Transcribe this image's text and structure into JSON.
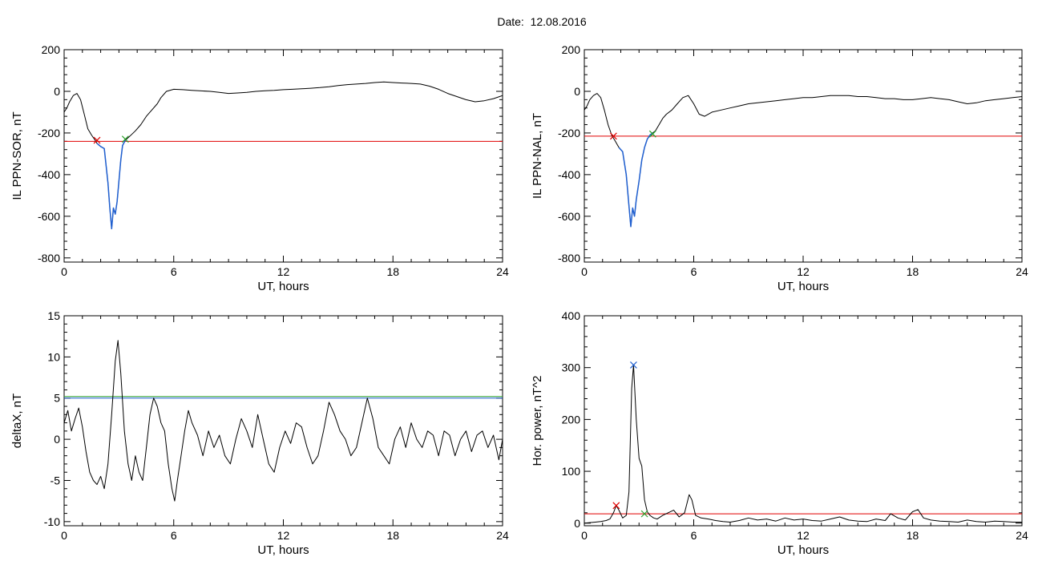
{
  "header": {
    "date_label": "Date:",
    "date_value": "12.08.2016"
  },
  "chart_data": [
    {
      "id": "sor",
      "type": "line",
      "xlabel": "UT, hours",
      "ylabel": "IL PPN-SOR, nT",
      "xlim": [
        0,
        24
      ],
      "ylim": [
        -820,
        200
      ],
      "xticks": [
        0,
        6,
        12,
        18,
        24
      ],
      "yticks": [
        -800,
        -600,
        -400,
        -200,
        0,
        200
      ],
      "xminor": 2,
      "yminor": 5,
      "series": [
        {
          "color": "#000000",
          "x": [
            0,
            0.15,
            0.3,
            0.5,
            0.7,
            0.9,
            1.1,
            1.3,
            1.5,
            1.7,
            1.8,
            2.0,
            2.2,
            2.4,
            2.5,
            2.6,
            2.7,
            2.8,
            2.9,
            3.0,
            3.1,
            3.2,
            3.35,
            3.6,
            3.9,
            4.2,
            4.5,
            4.8,
            5.1,
            5.3,
            5.6,
            6.0,
            6.5,
            7.0,
            7.5,
            8.0,
            8.5,
            9.0,
            9.5,
            10.0,
            10.5,
            11.0,
            11.5,
            12.0,
            12.5,
            13.0,
            13.5,
            14.0,
            14.5,
            15.0,
            15.5,
            16.0,
            16.5,
            17.0,
            17.5,
            18.0,
            18.5,
            19.0,
            19.5,
            20.0,
            20.5,
            21.0,
            21.5,
            22.0,
            22.5,
            23.0,
            23.5,
            24.0
          ],
          "y": [
            -100,
            -80,
            -50,
            -20,
            -10,
            -40,
            -110,
            -180,
            -210,
            -235,
            -250,
            -265,
            -275,
            -440,
            -560,
            -660,
            -560,
            -590,
            -530,
            -430,
            -330,
            -260,
            -235,
            -215,
            -190,
            -160,
            -120,
            -90,
            -60,
            -30,
            0,
            10,
            8,
            5,
            2,
            0,
            -5,
            -10,
            -8,
            -5,
            0,
            3,
            5,
            8,
            10,
            12,
            15,
            18,
            22,
            28,
            32,
            35,
            38,
            42,
            45,
            42,
            40,
            38,
            35,
            25,
            10,
            -10,
            -25,
            -40,
            -50,
            -45,
            -35,
            -20
          ]
        },
        {
          "color": "#1f5fd0",
          "x": [
            1.8,
            2.0,
            2.2,
            2.4,
            2.5,
            2.6,
            2.7,
            2.8,
            2.9,
            3.0,
            3.1,
            3.2,
            3.35
          ],
          "y": [
            -250,
            -265,
            -275,
            -440,
            -560,
            -660,
            -560,
            -590,
            -530,
            -430,
            -330,
            -260,
            -235
          ]
        }
      ],
      "hlines": [
        {
          "y": -240,
          "color": "#e00000"
        }
      ],
      "markers": [
        {
          "x": 1.8,
          "y": -235,
          "color": "#e00000"
        },
        {
          "x": 3.35,
          "y": -230,
          "color": "#2aa02a"
        }
      ]
    },
    {
      "id": "nal",
      "type": "line",
      "xlabel": "UT, hours",
      "ylabel": "IL PPN-NAL, nT",
      "xlim": [
        0,
        24
      ],
      "ylim": [
        -820,
        200
      ],
      "xticks": [
        0,
        6,
        12,
        18,
        24
      ],
      "yticks": [
        -800,
        -600,
        -400,
        -200,
        0,
        200
      ],
      "xminor": 2,
      "yminor": 5,
      "series": [
        {
          "color": "#000000",
          "x": [
            0,
            0.15,
            0.3,
            0.5,
            0.7,
            0.9,
            1.1,
            1.3,
            1.5,
            1.7,
            1.9,
            2.1,
            2.3,
            2.45,
            2.55,
            2.65,
            2.75,
            2.85,
            3.0,
            3.15,
            3.3,
            3.45,
            3.6,
            3.75,
            3.9,
            4.1,
            4.3,
            4.5,
            4.8,
            5.1,
            5.4,
            5.7,
            6.0,
            6.3,
            6.6,
            7.0,
            7.5,
            8.0,
            8.5,
            9.0,
            9.5,
            10.0,
            10.5,
            11.0,
            11.5,
            12.0,
            12.5,
            13.0,
            13.5,
            14.0,
            14.5,
            15.0,
            15.5,
            16.0,
            16.5,
            17.0,
            17.5,
            18.0,
            18.5,
            19.0,
            19.5,
            20.0,
            20.5,
            21.0,
            21.5,
            22.0,
            22.5,
            23.0,
            23.5,
            24.0
          ],
          "y": [
            -90,
            -70,
            -40,
            -20,
            -10,
            -30,
            -90,
            -160,
            -210,
            -240,
            -270,
            -290,
            -400,
            -550,
            -650,
            -560,
            -600,
            -520,
            -430,
            -330,
            -270,
            -230,
            -210,
            -200,
            -190,
            -160,
            -130,
            -110,
            -90,
            -60,
            -30,
            -20,
            -60,
            -110,
            -120,
            -100,
            -90,
            -80,
            -70,
            -60,
            -55,
            -50,
            -45,
            -40,
            -35,
            -30,
            -30,
            -25,
            -20,
            -20,
            -20,
            -25,
            -25,
            -30,
            -35,
            -35,
            -40,
            -40,
            -35,
            -30,
            -35,
            -40,
            -50,
            -60,
            -55,
            -45,
            -40,
            -35,
            -30,
            -25
          ]
        },
        {
          "color": "#1f5fd0",
          "x": [
            1.9,
            2.1,
            2.3,
            2.45,
            2.55,
            2.65,
            2.75,
            2.85,
            3.0,
            3.15,
            3.3,
            3.45,
            3.6,
            3.75
          ],
          "y": [
            -270,
            -290,
            -400,
            -550,
            -650,
            -560,
            -600,
            -520,
            -430,
            -330,
            -270,
            -230,
            -210,
            -200
          ]
        }
      ],
      "hlines": [
        {
          "y": -215,
          "color": "#e00000"
        }
      ],
      "markers": [
        {
          "x": 1.6,
          "y": -215,
          "color": "#e00000"
        },
        {
          "x": 3.75,
          "y": -205,
          "color": "#2aa02a"
        }
      ]
    },
    {
      "id": "deltax",
      "type": "line",
      "xlabel": "UT, hours",
      "ylabel": "deltaX, nT",
      "xlim": [
        0,
        24
      ],
      "ylim": [
        -10.5,
        15
      ],
      "xticks": [
        0,
        6,
        12,
        18,
        24
      ],
      "yticks": [
        -10,
        -5,
        0,
        5,
        10,
        15
      ],
      "xminor": 2,
      "yminor": 5,
      "series": [
        {
          "color": "#000000",
          "x": [
            0,
            0.2,
            0.4,
            0.6,
            0.8,
            1.0,
            1.2,
            1.4,
            1.6,
            1.8,
            2.0,
            2.2,
            2.4,
            2.6,
            2.8,
            2.95,
            3.1,
            3.3,
            3.5,
            3.7,
            3.9,
            4.1,
            4.3,
            4.5,
            4.7,
            4.9,
            5.1,
            5.3,
            5.5,
            5.7,
            5.9,
            6.05,
            6.2,
            6.4,
            6.6,
            6.8,
            7.0,
            7.3,
            7.6,
            7.9,
            8.2,
            8.5,
            8.8,
            9.1,
            9.4,
            9.7,
            10.0,
            10.3,
            10.6,
            10.9,
            11.2,
            11.5,
            11.8,
            12.1,
            12.4,
            12.7,
            13.0,
            13.3,
            13.6,
            13.9,
            14.2,
            14.5,
            14.8,
            15.1,
            15.4,
            15.7,
            16.0,
            16.3,
            16.6,
            16.9,
            17.2,
            17.5,
            17.8,
            18.1,
            18.4,
            18.7,
            19.0,
            19.3,
            19.6,
            19.9,
            20.2,
            20.5,
            20.8,
            21.1,
            21.4,
            21.7,
            22.0,
            22.3,
            22.6,
            22.9,
            23.2,
            23.5,
            23.8,
            24.0
          ],
          "y": [
            2,
            3.5,
            1,
            2.5,
            3.8,
            1.5,
            -1.5,
            -4,
            -5,
            -5.5,
            -4.5,
            -6,
            -3,
            3,
            9.5,
            12,
            8,
            1,
            -3,
            -5,
            -2,
            -4,
            -5,
            -1,
            3,
            5,
            4,
            2,
            1,
            -3,
            -6,
            -7.5,
            -5,
            -2,
            1,
            3.5,
            2,
            0.5,
            -2,
            1,
            -1,
            0.5,
            -2,
            -3,
            0,
            2.5,
            1,
            -1,
            3,
            0,
            -3,
            -4,
            -1,
            1,
            -0.5,
            2,
            1.5,
            -1,
            -3,
            -2,
            1,
            4.5,
            3,
            1,
            0,
            -2,
            -1,
            2,
            5,
            2.5,
            -1,
            -2,
            -3,
            0,
            1.5,
            -1,
            2,
            0,
            -1,
            1,
            0.5,
            -2,
            1,
            0.5,
            -2,
            0,
            1,
            -1.5,
            0.5,
            1,
            -1,
            0.5,
            -2.5,
            0
          ]
        }
      ],
      "hlines": [
        {
          "y": 5.2,
          "color": "#2aa02a"
        },
        {
          "y": 5.0,
          "color": "#1f5fd0"
        }
      ],
      "markers": []
    },
    {
      "id": "power",
      "type": "line",
      "xlabel": "UT, hours",
      "ylabel": "Hor. power, nT^2",
      "xlim": [
        0,
        24
      ],
      "ylim": [
        -5,
        400
      ],
      "xticks": [
        0,
        6,
        12,
        18,
        24
      ],
      "yticks": [
        0,
        100,
        200,
        300,
        400
      ],
      "xminor": 2,
      "yminor": 5,
      "series": [
        {
          "color": "#000000",
          "x": [
            0,
            0.3,
            0.6,
            0.9,
            1.2,
            1.4,
            1.6,
            1.75,
            1.9,
            2.1,
            2.3,
            2.45,
            2.6,
            2.7,
            2.85,
            3.0,
            3.15,
            3.3,
            3.45,
            3.6,
            3.8,
            4.0,
            4.3,
            4.6,
            4.9,
            5.2,
            5.5,
            5.75,
            5.9,
            6.1,
            6.4,
            6.8,
            7.2,
            7.6,
            8.0,
            8.5,
            9.0,
            9.5,
            10.0,
            10.5,
            11.0,
            11.5,
            12.0,
            12.5,
            13.0,
            13.5,
            14.0,
            14.5,
            15.0,
            15.5,
            16.0,
            16.5,
            16.8,
            17.2,
            17.6,
            18.0,
            18.3,
            18.6,
            19.0,
            19.5,
            20.0,
            20.5,
            21.0,
            21.5,
            22.0,
            22.5,
            23.0,
            23.5,
            24.0
          ],
          "y": [
            0,
            1,
            2,
            3,
            5,
            8,
            20,
            34,
            25,
            10,
            15,
            60,
            260,
            305,
            200,
            125,
            110,
            45,
            22,
            15,
            10,
            8,
            15,
            20,
            25,
            12,
            20,
            55,
            45,
            15,
            10,
            8,
            5,
            3,
            2,
            5,
            10,
            6,
            8,
            4,
            10,
            6,
            8,
            5,
            4,
            8,
            12,
            6,
            4,
            3,
            8,
            5,
            18,
            10,
            6,
            22,
            26,
            10,
            6,
            4,
            3,
            2,
            6,
            3,
            2,
            4,
            3,
            2,
            2
          ]
        }
      ],
      "hlines": [
        {
          "y": 18,
          "color": "#e00000"
        }
      ],
      "markers": [
        {
          "x": 1.75,
          "y": 34,
          "color": "#e00000"
        },
        {
          "x": 2.7,
          "y": 305,
          "color": "#1f5fd0"
        },
        {
          "x": 3.3,
          "y": 18,
          "color": "#2aa02a"
        }
      ]
    }
  ]
}
